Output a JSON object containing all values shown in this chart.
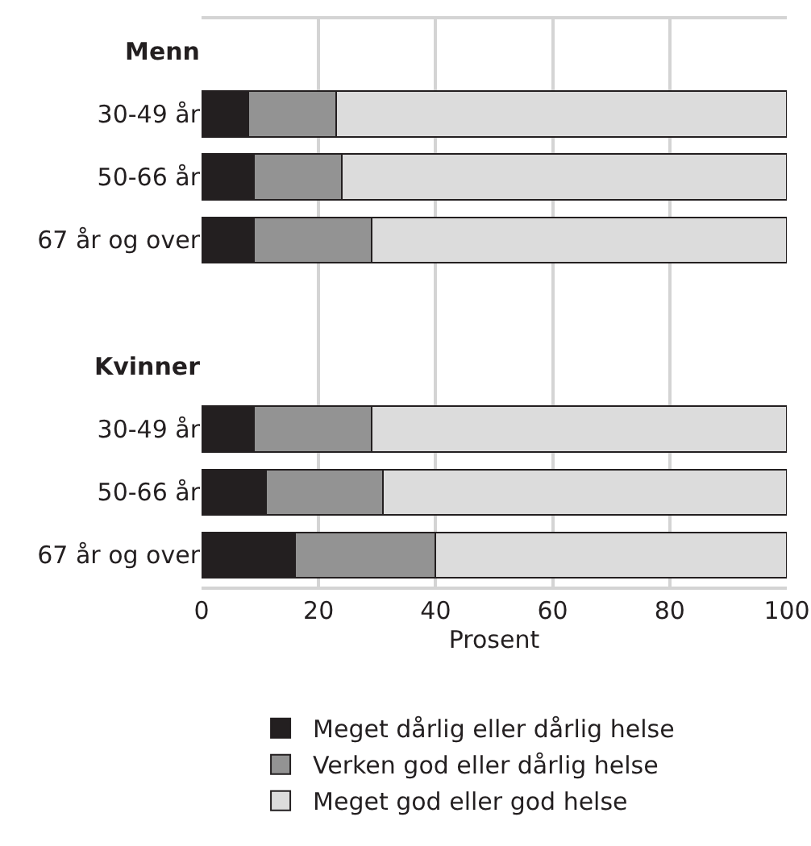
{
  "chart_data": {
    "type": "bar",
    "orientation": "horizontal",
    "stacked": true,
    "xlabel": "Prosent",
    "categories": [
      "Menn",
      "30-49 år",
      "50-66 år",
      "67 år og over",
      null,
      "Kvinner",
      "30-49 år",
      "50-66 år",
      "67 år og over"
    ],
    "series": [
      {
        "name": "Meget dårlig eller dårlig helse",
        "color": "#231f20",
        "values": [
          null,
          8,
          9,
          9,
          null,
          null,
          9,
          11,
          16
        ]
      },
      {
        "name": "Verken god eller dårlig helse",
        "color": "#939393",
        "values": [
          null,
          15,
          15,
          20,
          null,
          null,
          20,
          20,
          24
        ]
      },
      {
        "name": "Meget god eller god helse",
        "color": "#dcdcdc",
        "values": [
          null,
          77,
          76,
          71,
          null,
          null,
          71,
          69,
          60
        ]
      }
    ],
    "xlim": [
      0,
      100
    ],
    "xticks": [
      0,
      20,
      40,
      60,
      80,
      100
    ],
    "grid": "x",
    "legend": "bottom"
  }
}
